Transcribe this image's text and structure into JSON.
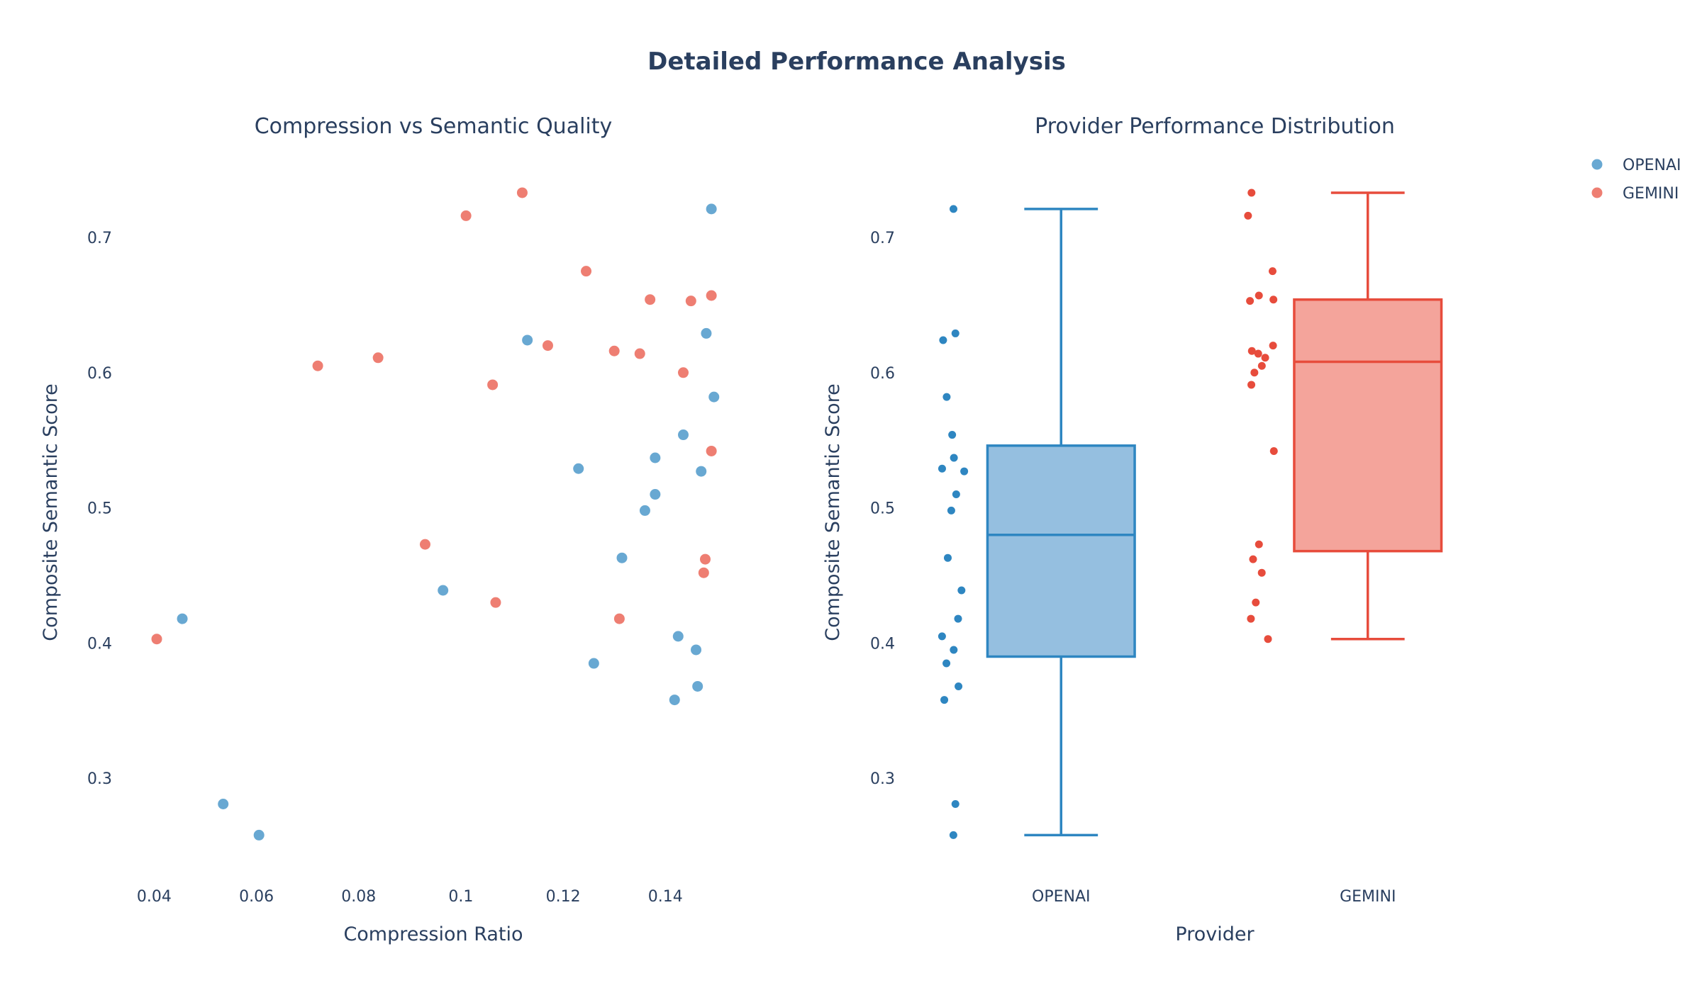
{
  "title": "Detailed Performance Analysis",
  "colors": {
    "openai": "#2e86c1",
    "gemini": "#e74c3c",
    "openai_fill": "#95bfe0",
    "gemini_fill": "#f4a49b",
    "text": "#2a3f5f"
  },
  "legend": {
    "items": [
      {
        "name": "OPENAI",
        "color": "#2e86c1"
      },
      {
        "name": "GEMINI",
        "color": "#e74c3c"
      }
    ],
    "placement": "top-right"
  },
  "chart_data": [
    {
      "type": "scatter",
      "title": "Compression vs Semantic Quality",
      "xlabel": "Compression Ratio",
      "ylabel": "Composite Semantic Score",
      "xlim": [
        0.0337,
        0.1555
      ],
      "ylim": [
        0.232,
        0.755
      ],
      "xticks": [
        0.04,
        0.06,
        0.08,
        0.1,
        0.12,
        0.14
      ],
      "xtick_labels": [
        "0.04",
        "0.06",
        "0.08",
        "0.1",
        "0.12",
        "0.14"
      ],
      "yticks": [
        0.3,
        0.4,
        0.5,
        0.6,
        0.7
      ],
      "ytick_labels": [
        "0.3",
        "0.4",
        "0.5",
        "0.6",
        "0.7"
      ],
      "grid": false,
      "series": [
        {
          "name": "OPENAI",
          "color": "#2e86c1",
          "points": [
            [
              0.149,
              0.721
            ],
            [
              0.148,
              0.629
            ],
            [
              0.113,
              0.624
            ],
            [
              0.1495,
              0.582
            ],
            [
              0.1435,
              0.554
            ],
            [
              0.138,
              0.537
            ],
            [
              0.123,
              0.529
            ],
            [
              0.147,
              0.527
            ],
            [
              0.138,
              0.51
            ],
            [
              0.136,
              0.498
            ],
            [
              0.1315,
              0.463
            ],
            [
              0.0965,
              0.439
            ],
            [
              0.0455,
              0.418
            ],
            [
              0.1425,
              0.405
            ],
            [
              0.146,
              0.395
            ],
            [
              0.126,
              0.385
            ],
            [
              0.1463,
              0.368
            ],
            [
              0.1418,
              0.358
            ],
            [
              0.0535,
              0.281
            ],
            [
              0.0605,
              0.258
            ]
          ]
        },
        {
          "name": "GEMINI",
          "color": "#e74c3c",
          "points": [
            [
              0.112,
              0.733
            ],
            [
              0.101,
              0.716
            ],
            [
              0.1245,
              0.675
            ],
            [
              0.137,
              0.654
            ],
            [
              0.145,
              0.653
            ],
            [
              0.149,
              0.657
            ],
            [
              0.117,
              0.62
            ],
            [
              0.13,
              0.616
            ],
            [
              0.135,
              0.614
            ],
            [
              0.072,
              0.605
            ],
            [
              0.0838,
              0.611
            ],
            [
              0.1435,
              0.6
            ],
            [
              0.1062,
              0.591
            ],
            [
              0.149,
              0.542
            ],
            [
              0.093,
              0.473
            ],
            [
              0.1478,
              0.462
            ],
            [
              0.1475,
              0.452
            ],
            [
              0.1068,
              0.43
            ],
            [
              0.131,
              0.418
            ],
            [
              0.0405,
              0.403
            ]
          ]
        }
      ]
    },
    {
      "type": "box",
      "title": "Provider Performance Distribution",
      "xlabel": "Provider",
      "ylabel": "Composite Semantic Score",
      "categories": [
        "OPENAI",
        "GEMINI"
      ],
      "ylim": [
        0.232,
        0.755
      ],
      "yticks": [
        0.3,
        0.4,
        0.5,
        0.6,
        0.7
      ],
      "ytick_labels": [
        "0.3",
        "0.4",
        "0.5",
        "0.6",
        "0.7"
      ],
      "grid": false,
      "series": [
        {
          "name": "OPENAI",
          "color": "#2e86c1",
          "fill": "#95bfe0",
          "min": 0.258,
          "q1": 0.39,
          "median": 0.48,
          "q3": 0.546,
          "max": 0.721,
          "values": [
            0.721,
            0.629,
            0.624,
            0.582,
            0.554,
            0.537,
            0.529,
            0.527,
            0.51,
            0.498,
            0.463,
            0.439,
            0.418,
            0.405,
            0.395,
            0.385,
            0.368,
            0.358,
            0.281,
            0.258
          ]
        },
        {
          "name": "GEMINI",
          "color": "#e74c3c",
          "fill": "#f4a49b",
          "min": 0.403,
          "q1": 0.468,
          "median": 0.608,
          "q3": 0.654,
          "max": 0.733,
          "values": [
            0.733,
            0.716,
            0.675,
            0.654,
            0.653,
            0.657,
            0.62,
            0.616,
            0.614,
            0.605,
            0.611,
            0.6,
            0.591,
            0.542,
            0.473,
            0.462,
            0.452,
            0.43,
            0.418,
            0.403
          ]
        }
      ]
    }
  ]
}
